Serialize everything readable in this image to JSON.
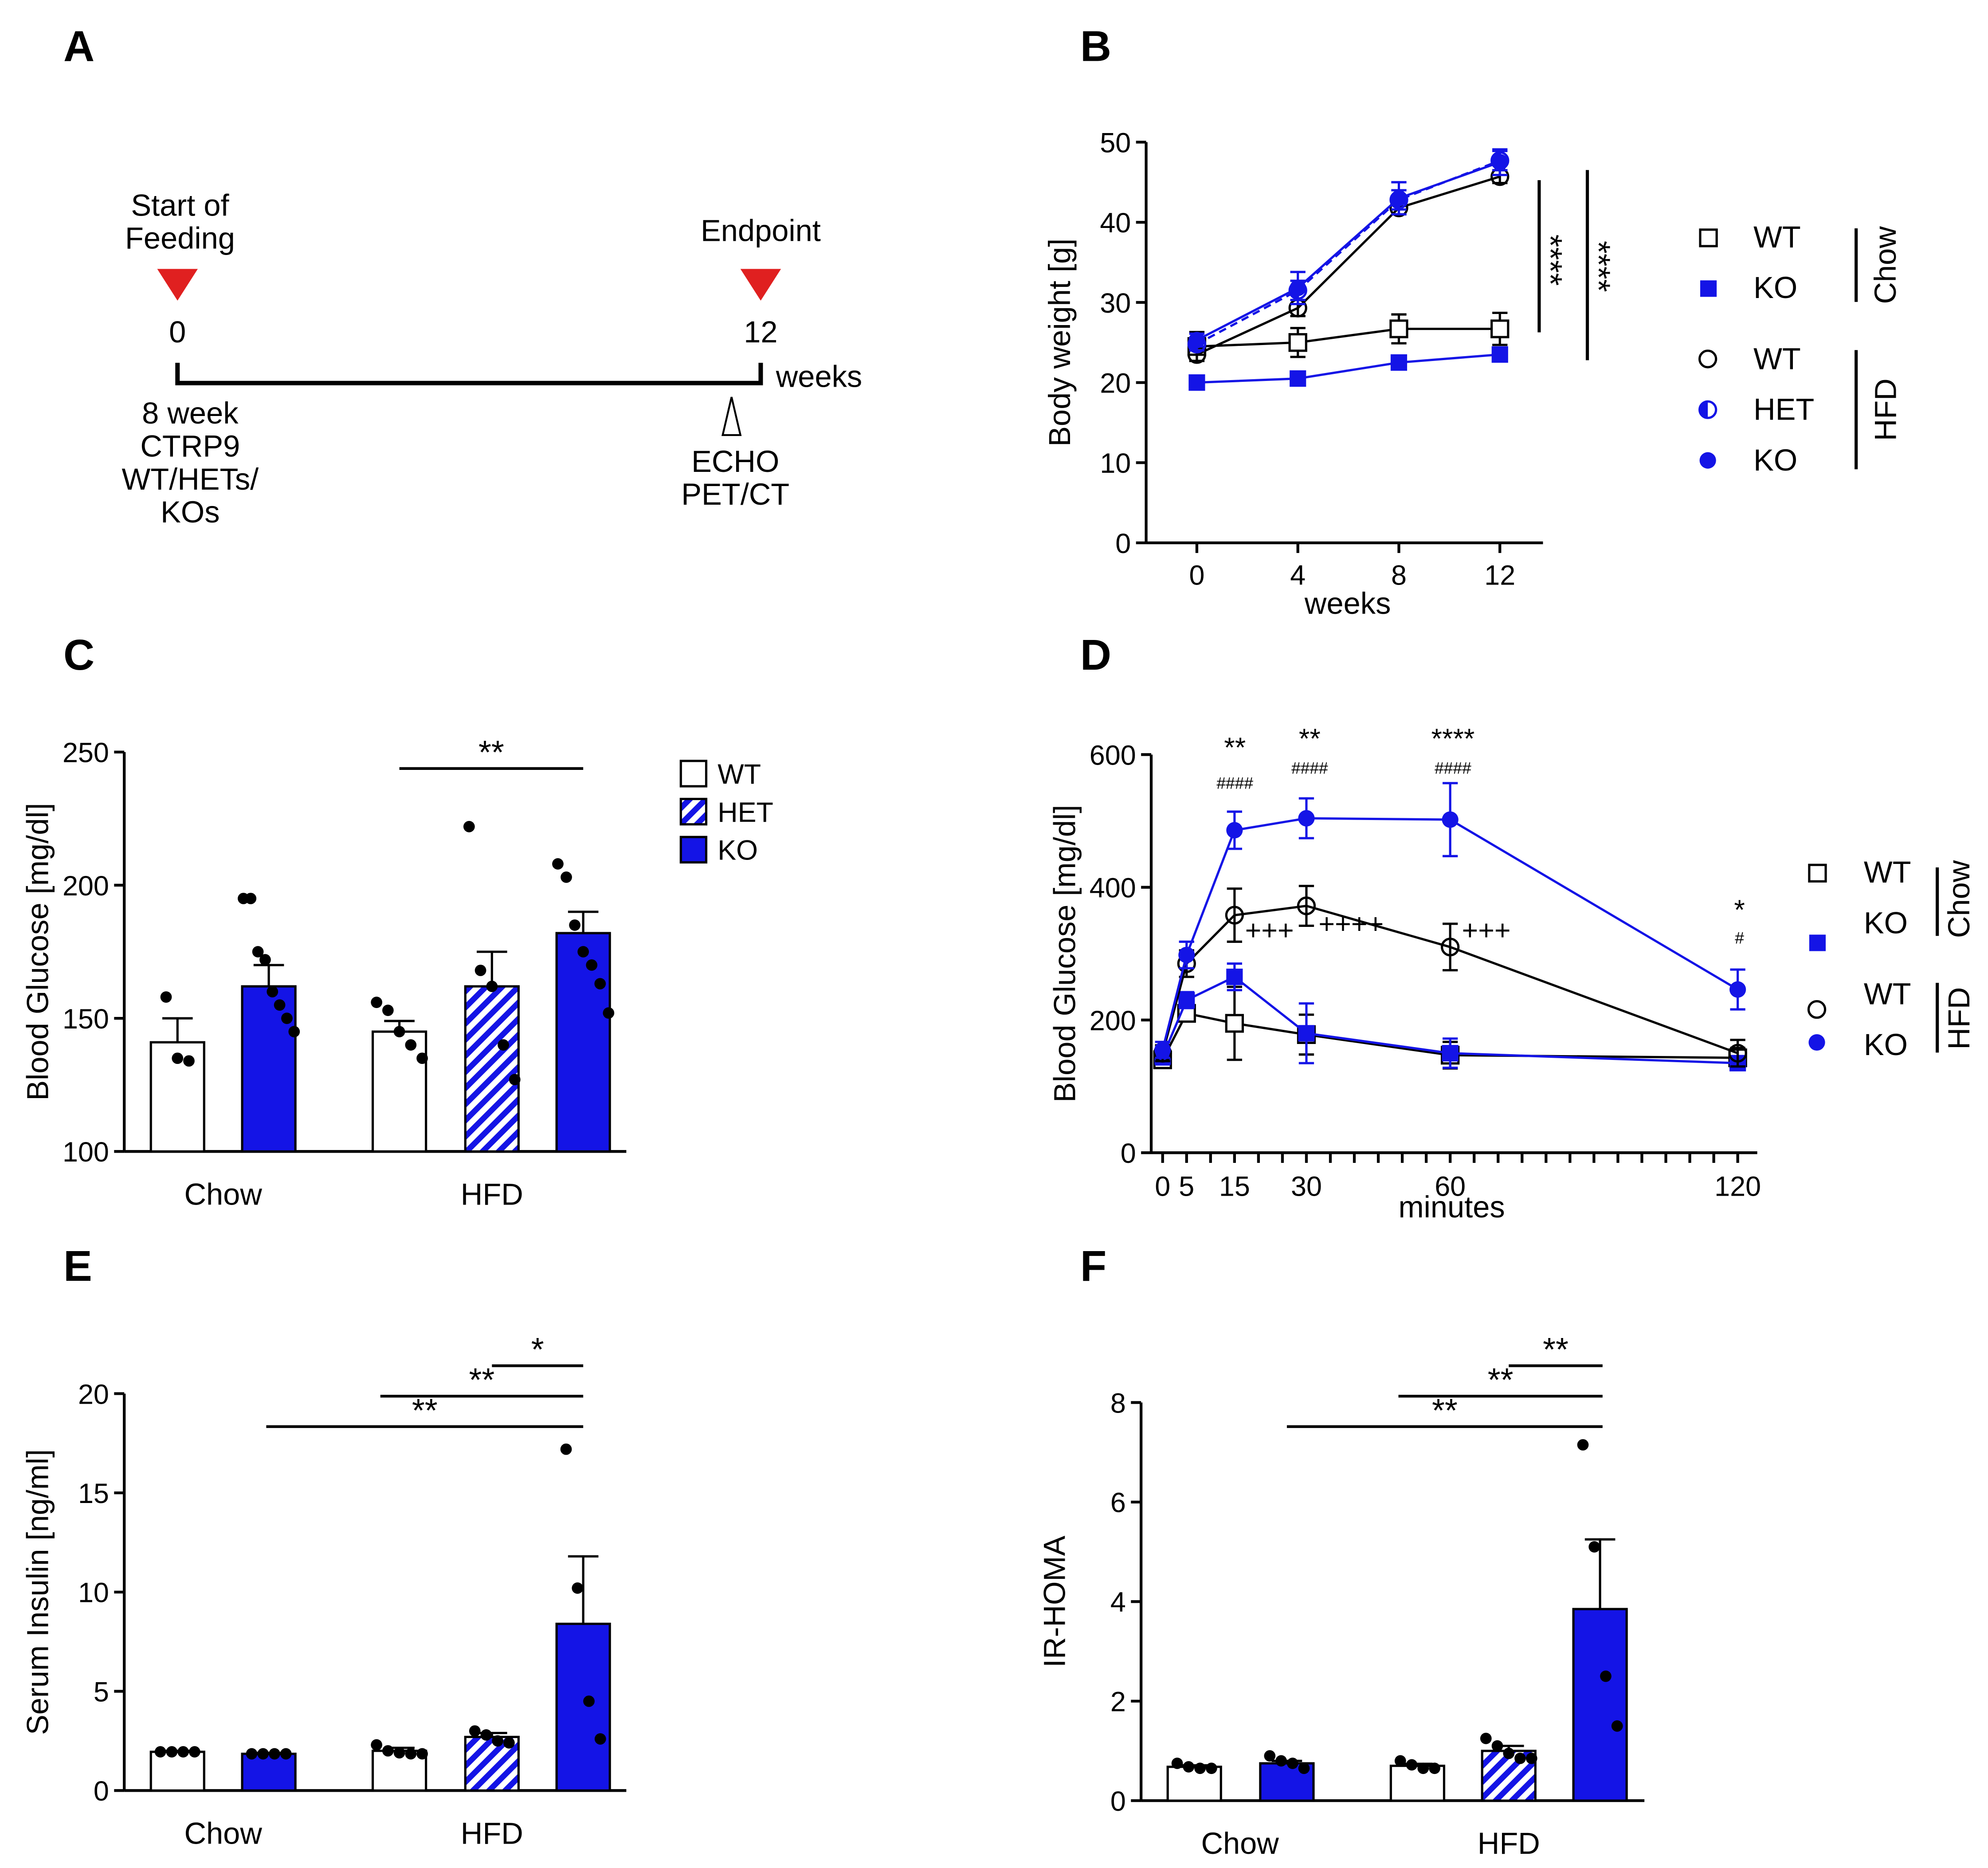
{
  "colors": {
    "blue": "#1414e6",
    "black": "#000000",
    "red": "#e02020",
    "white": "#ffffff"
  },
  "panel_labels": {
    "a": "A",
    "b": "B",
    "c": "C",
    "d": "D",
    "e": "E",
    "f": "F"
  },
  "timeline": {
    "start_label_1": "Start of",
    "start_label_2": "Feeding",
    "end_label": "Endpoint",
    "start_tick": "0",
    "end_tick": "12",
    "unit": "weeks",
    "cohort_1": "8 week",
    "cohort_2": "CTRP9",
    "cohort_3": "WT/HETs/",
    "cohort_4": "KOs",
    "measure_1": "ECHO",
    "measure_2": "PET/CT"
  },
  "legend_b": {
    "wt": "WT",
    "ko": "KO",
    "wt2": "WT",
    "het": "HET",
    "ko2": "KO",
    "chow": "Chow",
    "hfd": "HFD"
  },
  "legend_c": {
    "wt": "WT",
    "het": "HET",
    "ko": "KO"
  },
  "legend_d": {
    "wt": "WT",
    "ko": "KO",
    "wt2": "WT",
    "ko2": "KO",
    "chow": "Chow",
    "hfd": "HFD"
  },
  "chart_data": [
    {
      "panel": "B",
      "type": "line",
      "xlabel": "weeks",
      "ylabel": "Body weight [g]",
      "x": [
        0,
        4,
        8,
        12
      ],
      "xticks": [
        "0",
        "4",
        "8",
        "12"
      ],
      "ylim": [
        0,
        50
      ],
      "yticks": [
        "0",
        "10",
        "20",
        "30",
        "40",
        "50"
      ],
      "series": [
        {
          "name": "WT Chow",
          "values": [
            24.5,
            25.0,
            26.7,
            26.7
          ],
          "sem": [
            1.8,
            1.8,
            1.8,
            2.0
          ]
        },
        {
          "name": "KO Chow",
          "values": [
            20.0,
            20.5,
            22.5,
            23.5
          ],
          "sem": [
            0.4,
            0.4,
            0.5,
            0.5
          ]
        },
        {
          "name": "WT HFD",
          "values": [
            23.5,
            29.3,
            41.8,
            45.7
          ],
          "sem": [
            0.8,
            1.0,
            0.8,
            0.8
          ]
        },
        {
          "name": "HET HFD",
          "values": [
            24.8,
            31.5,
            42.8,
            47.7
          ],
          "sem": [
            0.8,
            1.2,
            1.2,
            1.2
          ]
        },
        {
          "name": "KO HFD",
          "values": [
            25.3,
            31.8,
            43.0,
            47.5
          ],
          "sem": [
            0.8,
            2.0,
            2.0,
            1.6
          ]
        }
      ],
      "annotations": [
        "****",
        "****"
      ]
    },
    {
      "panel": "C",
      "type": "bar",
      "ylabel": "Blood Glucose [mg/dl]",
      "groups": [
        "Chow",
        "HFD"
      ],
      "ylim": [
        100,
        250
      ],
      "yticks": [
        "100",
        "150",
        "200",
        "250"
      ],
      "bars": [
        {
          "group": "Chow",
          "series": "WT",
          "value": 141,
          "sem": 9,
          "points": [
            158,
            135,
            134
          ]
        },
        {
          "group": "Chow",
          "series": "KO",
          "value": 162,
          "sem": 8,
          "points": [
            195,
            195,
            175,
            172,
            160,
            155,
            150,
            145
          ]
        },
        {
          "group": "HFD",
          "series": "WT",
          "value": 145,
          "sem": 4,
          "points": [
            156,
            153,
            145,
            140,
            135
          ]
        },
        {
          "group": "HFD",
          "series": "HET",
          "value": 162,
          "sem": 13,
          "points": [
            222,
            168,
            162,
            140,
            127
          ]
        },
        {
          "group": "HFD",
          "series": "KO",
          "value": 182,
          "sem": 8,
          "points": [
            208,
            203,
            185,
            175,
            170,
            163,
            152
          ]
        }
      ],
      "annotations": [
        "**"
      ]
    },
    {
      "panel": "D",
      "type": "line",
      "xlabel": "minutes",
      "ylabel": "Blood Glucose [mg/dl]",
      "x": [
        0,
        5,
        15,
        30,
        60,
        120
      ],
      "xticks": [
        "0",
        "5",
        "15",
        "30",
        "60",
        "120"
      ],
      "ylim": [
        0,
        600
      ],
      "yticks": [
        "0",
        "200",
        "400",
        "600"
      ],
      "series": [
        {
          "name": "WT Chow",
          "values": [
            140,
            210,
            195,
            178,
            147,
            143
          ],
          "sem": [
            12,
            12,
            55,
            30,
            20,
            15
          ]
        },
        {
          "name": "KO Chow",
          "values": [
            145,
            230,
            265,
            180,
            150,
            135
          ],
          "sem": [
            12,
            12,
            20,
            45,
            22,
            8
          ]
        },
        {
          "name": "WT HFD",
          "values": [
            150,
            285,
            358,
            372,
            310,
            150
          ],
          "sem": [
            12,
            20,
            40,
            30,
            35,
            20
          ]
        },
        {
          "name": "KO HFD",
          "values": [
            155,
            298,
            486,
            504,
            502,
            246
          ],
          "sem": [
            12,
            20,
            28,
            30,
            55,
            30
          ]
        }
      ],
      "annotations": [
        "**",
        "####",
        "**",
        "####",
        "****",
        "####",
        "*",
        "#",
        "+++",
        "++++",
        "+++"
      ]
    },
    {
      "panel": "E",
      "type": "bar",
      "ylabel": "Serum Insulin [ng/ml]",
      "groups": [
        "Chow",
        "HFD"
      ],
      "ylim": [
        0,
        20
      ],
      "yticks": [
        "0",
        "5",
        "10",
        "15",
        "20"
      ],
      "bars": [
        {
          "group": "Chow",
          "series": "WT",
          "value": 1.95,
          "sem": 0.05,
          "points": [
            1.95,
            1.95,
            1.95,
            1.95
          ]
        },
        {
          "group": "Chow",
          "series": "KO",
          "value": 1.85,
          "sem": 0.05,
          "points": [
            1.85,
            1.85,
            1.85,
            1.85
          ]
        },
        {
          "group": "HFD",
          "series": "WT",
          "value": 2.0,
          "sem": 0.15,
          "points": [
            2.3,
            2.0,
            1.9,
            1.85,
            1.85
          ]
        },
        {
          "group": "HFD",
          "series": "HET",
          "value": 2.7,
          "sem": 0.2,
          "points": [
            3.0,
            2.8,
            2.5,
            2.4
          ]
        },
        {
          "group": "HFD",
          "series": "KO",
          "value": 8.4,
          "sem": 3.4,
          "points": [
            17.2,
            10.2,
            4.5,
            2.6
          ]
        }
      ],
      "annotations": [
        "*",
        "**",
        "**"
      ]
    },
    {
      "panel": "F",
      "type": "bar",
      "ylabel": "IR-HOMA",
      "groups": [
        "Chow",
        "HFD"
      ],
      "ylim": [
        0,
        8
      ],
      "yticks": [
        "0",
        "2",
        "4",
        "6",
        "8"
      ],
      "bars": [
        {
          "group": "Chow",
          "series": "WT",
          "value": 0.68,
          "sem": 0.03,
          "points": [
            0.75,
            0.68,
            0.65,
            0.65
          ]
        },
        {
          "group": "Chow",
          "series": "KO",
          "value": 0.75,
          "sem": 0.05,
          "points": [
            0.9,
            0.8,
            0.75,
            0.65
          ]
        },
        {
          "group": "HFD",
          "series": "WT",
          "value": 0.7,
          "sem": 0.04,
          "points": [
            0.8,
            0.72,
            0.65,
            0.65
          ]
        },
        {
          "group": "HFD",
          "series": "HET",
          "value": 1.0,
          "sem": 0.1,
          "points": [
            1.25,
            1.1,
            0.95,
            0.85,
            0.85
          ]
        },
        {
          "group": "HFD",
          "series": "KO",
          "value": 3.85,
          "sem": 1.4,
          "points": [
            7.15,
            5.1,
            2.5,
            1.5
          ]
        }
      ],
      "annotations": [
        "**",
        "**",
        "**"
      ]
    }
  ]
}
